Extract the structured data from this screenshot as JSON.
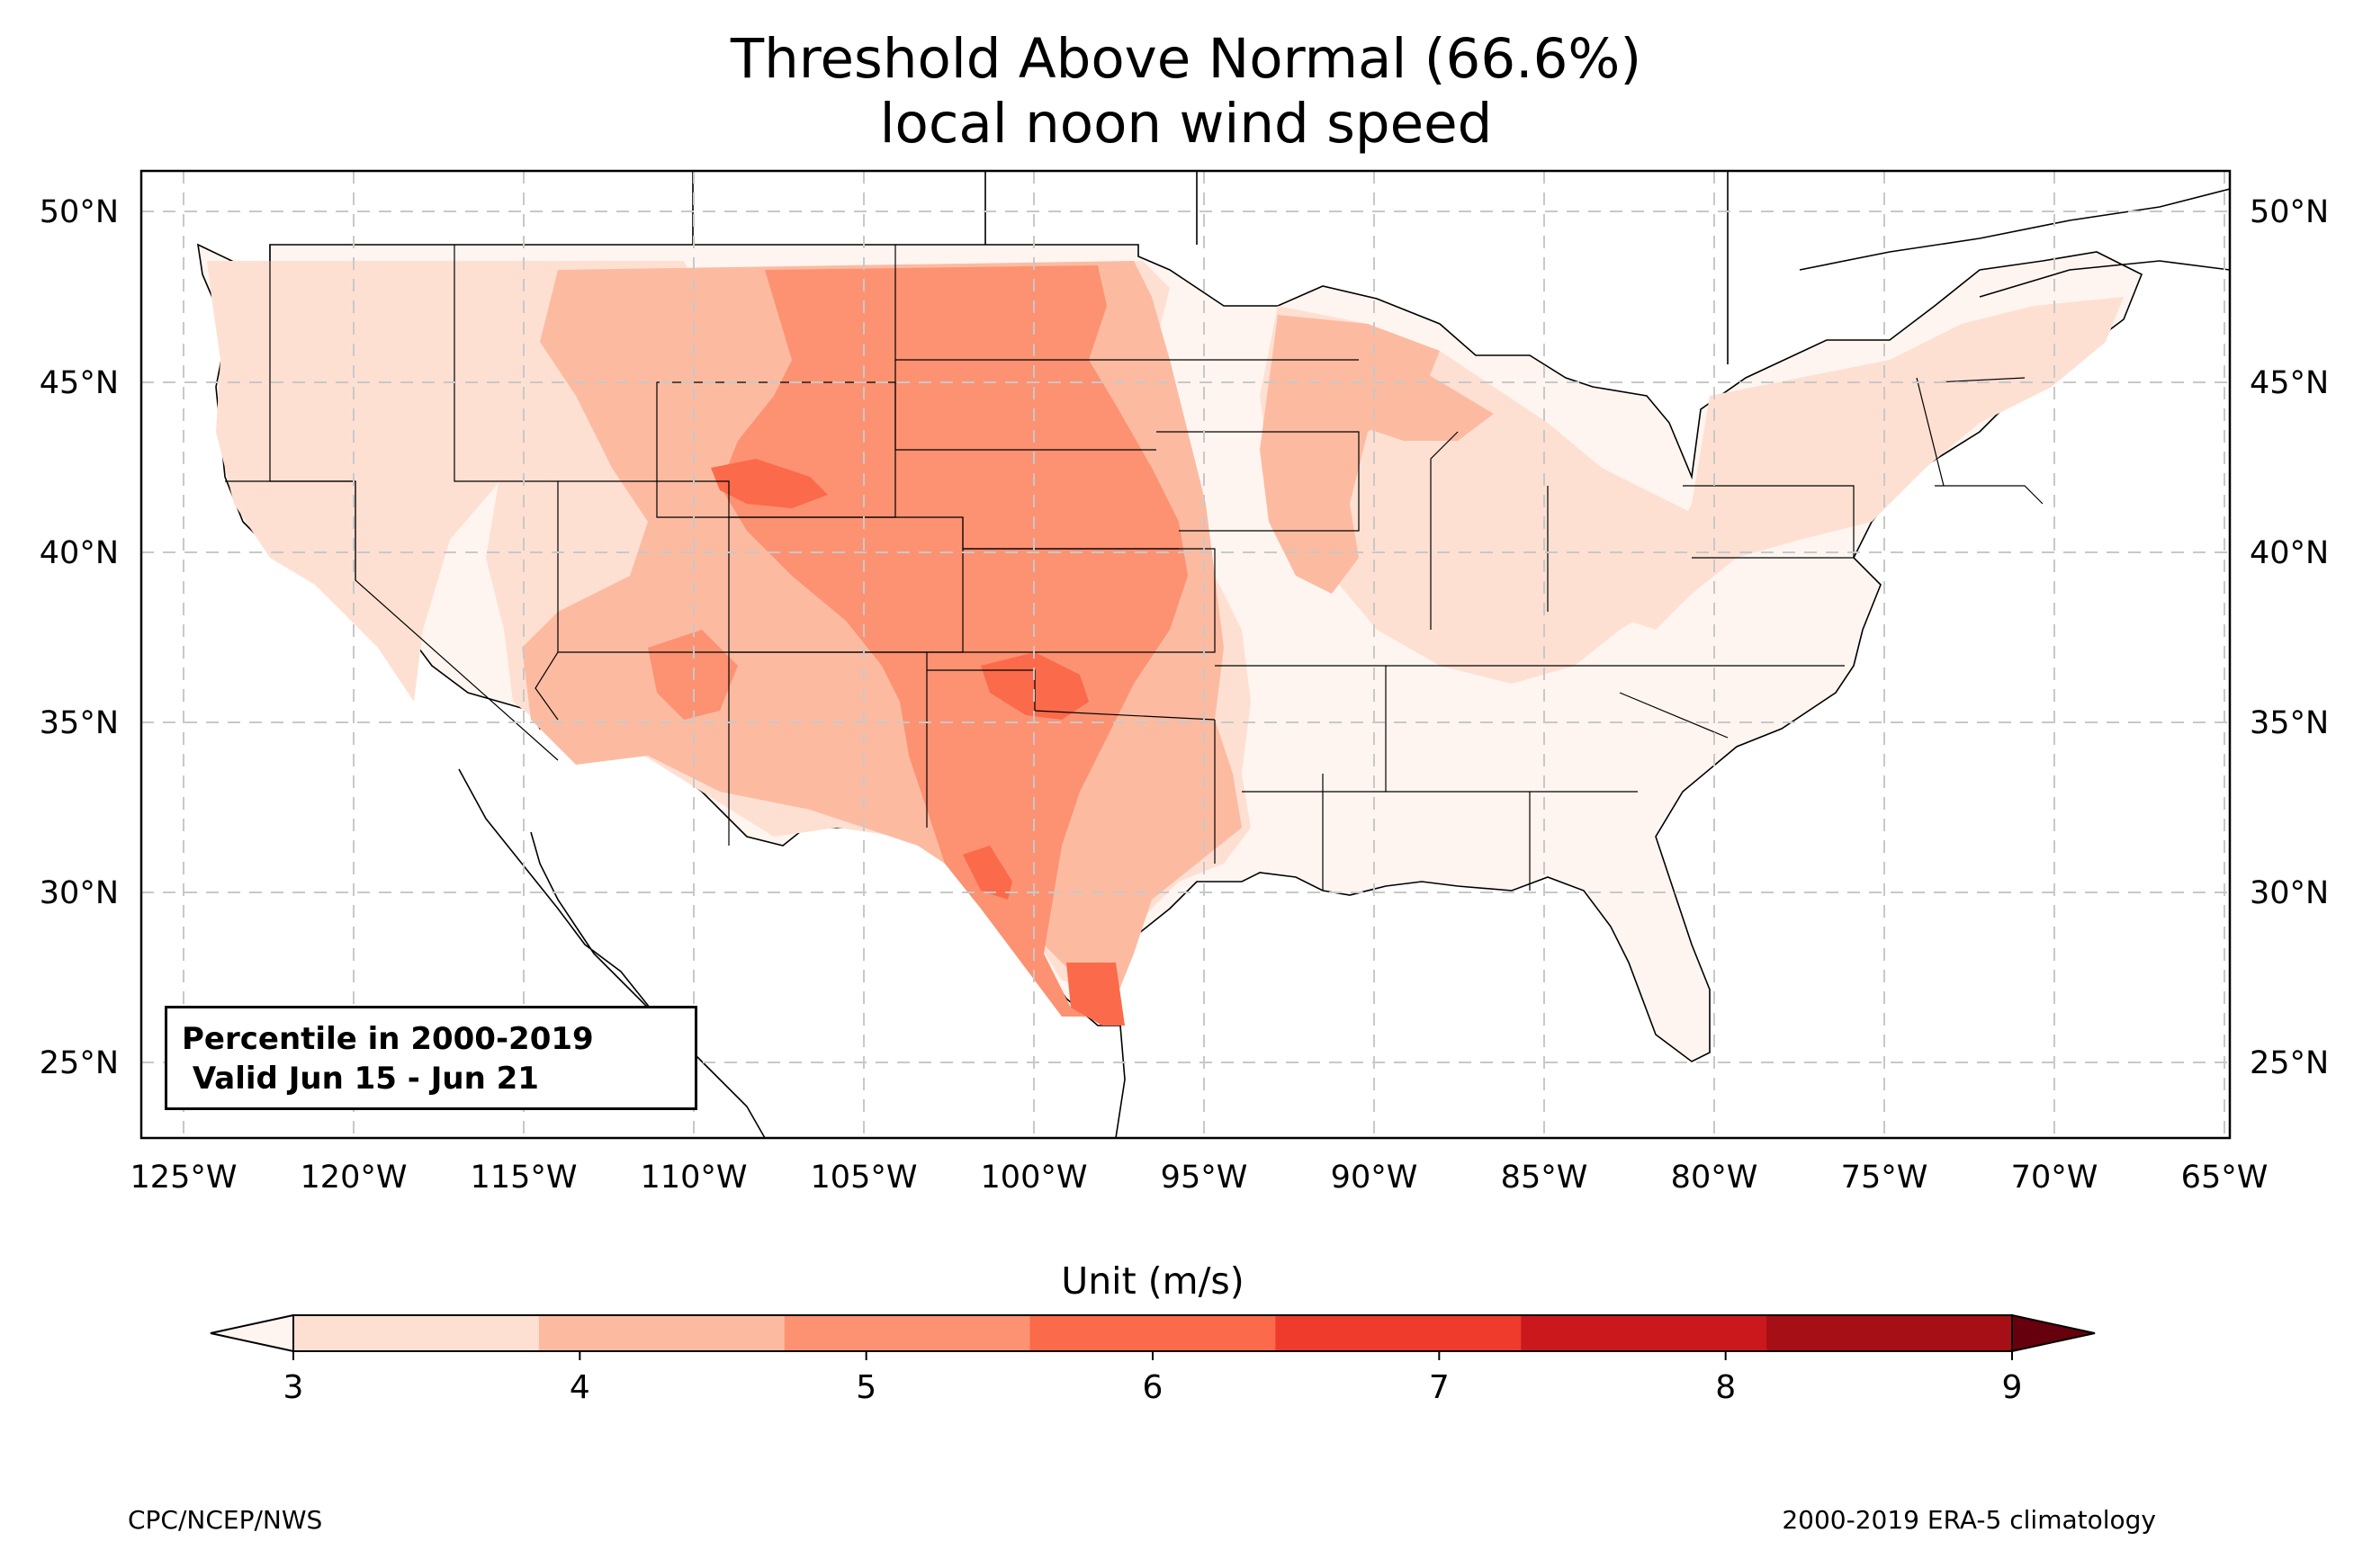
{
  "title": {
    "line1": "Threshold Above Normal (66.6%)",
    "line2": "local noon wind speed"
  },
  "info_box": {
    "line1": "Percentile in 2000-2019",
    "line2": " Valid Jun 15 - Jun 21"
  },
  "axes": {
    "lat_labels": [
      "50°N",
      "45°N",
      "40°N",
      "35°N",
      "30°N",
      "25°N"
    ],
    "lon_labels": [
      "125°W",
      "120°W",
      "115°W",
      "110°W",
      "105°W",
      "100°W",
      "95°W",
      "90°W",
      "85°W",
      "80°W",
      "75°W",
      "70°W",
      "65°W"
    ]
  },
  "colorbar": {
    "title": "Unit (m/s)",
    "ticks": [
      "3",
      "4",
      "5",
      "6",
      "7",
      "8",
      "9"
    ],
    "colors": [
      "#fee0d2",
      "#fcbba1",
      "#fc9272",
      "#fb6a4a",
      "#ef3b2c",
      "#cb181d",
      "#a50f15"
    ],
    "extend_low_color": "#fff5f0",
    "extend_high_color": "#67000d"
  },
  "footer": {
    "left": "CPC/NCEP/NWS",
    "right": "2000-2019 ERA-5 climatology"
  }
}
